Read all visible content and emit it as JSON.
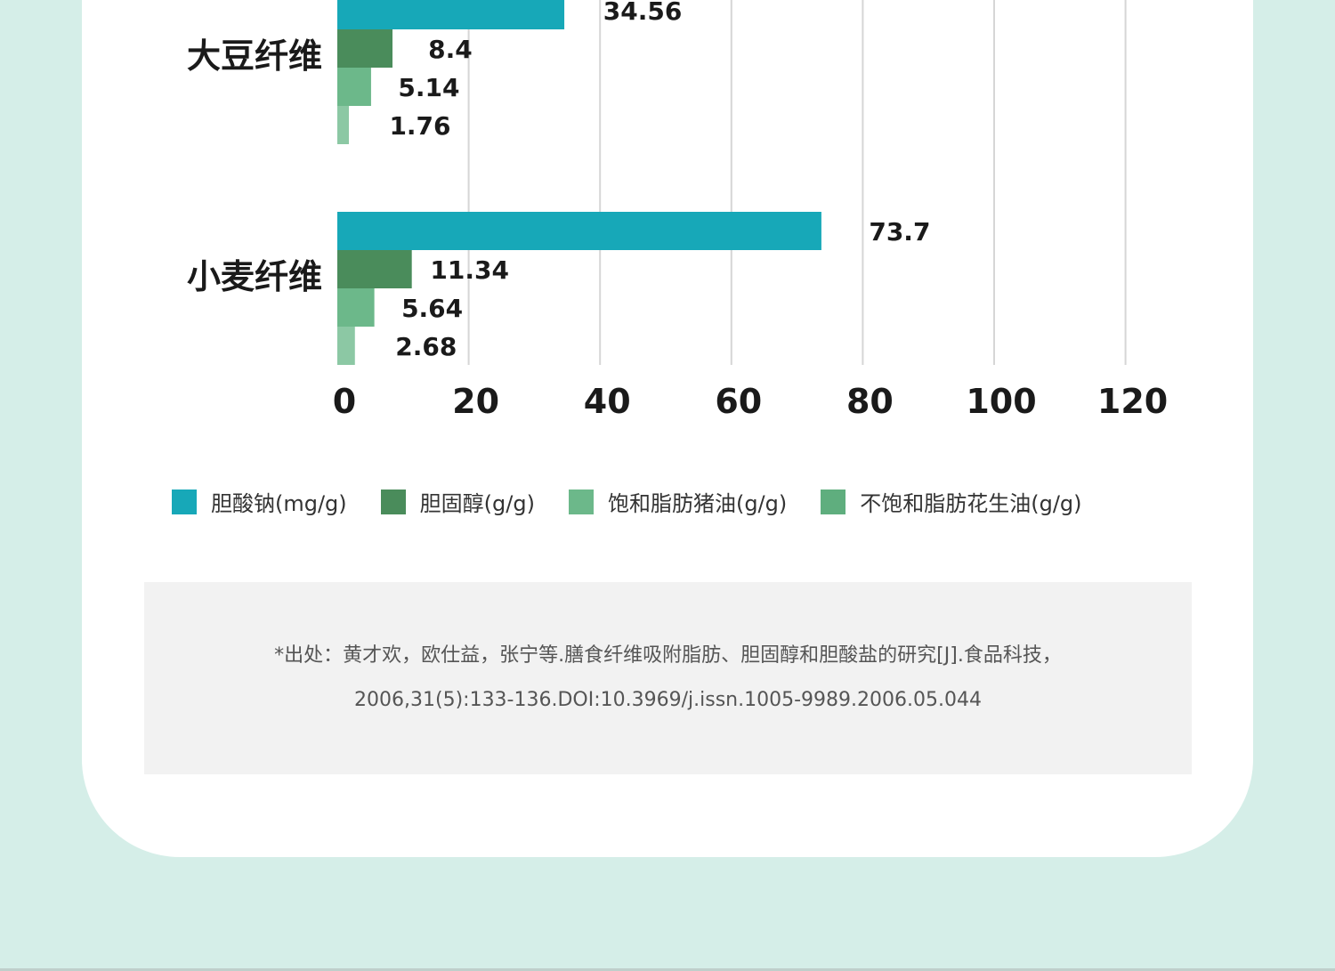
{
  "chart_data": {
    "type": "bar",
    "orientation": "horizontal",
    "categories": [
      "大豆纤维",
      "小麦纤维"
    ],
    "series": [
      {
        "name": "胆酸钠(mg/g)",
        "color": "#17a8b8",
        "values": [
          34.56,
          73.7
        ]
      },
      {
        "name": "胆固醇(g/g)",
        "color": "#4a8c5b",
        "values": [
          8.4,
          11.34
        ]
      },
      {
        "name": "饱和脂肪猪油(g/g)",
        "color": "#6cb88a",
        "values": [
          5.14,
          5.64
        ]
      },
      {
        "name": "不饱和脂肪花生油(g/g)",
        "color": "#8cc8a4",
        "values": [
          1.76,
          2.68
        ]
      }
    ],
    "value_labels": [
      [
        "34.56",
        "8.4",
        "5.14",
        "1.76"
      ],
      [
        "73.7",
        "11.34",
        "5.64",
        "2.68"
      ]
    ],
    "xlim": [
      0,
      120
    ],
    "xticks": [
      "0",
      "20",
      "40",
      "60",
      "80",
      "100",
      "120"
    ],
    "grid": "vertical",
    "legend_position": "bottom"
  },
  "legend": {
    "items": [
      {
        "label": "胆酸钠(mg/g)",
        "color": "#17a8b8"
      },
      {
        "label": "胆固醇(g/g)",
        "color": "#4a8c5b"
      },
      {
        "label": "饱和脂肪猪油(g/g)",
        "color": "#6cb88a"
      },
      {
        "label": "不饱和脂肪花生油(g/g)",
        "color": "#5fae7e"
      }
    ]
  },
  "citation": {
    "line1": "*出处：黄才欢，欧仕益，张宁等.膳食纤维吸附脂肪、胆固醇和胆酸盐的研究[J].食品科技，",
    "line2": "2006,31(5):133-136.DOI:10.3969/j.issn.1005-9989.2006.05.044"
  }
}
